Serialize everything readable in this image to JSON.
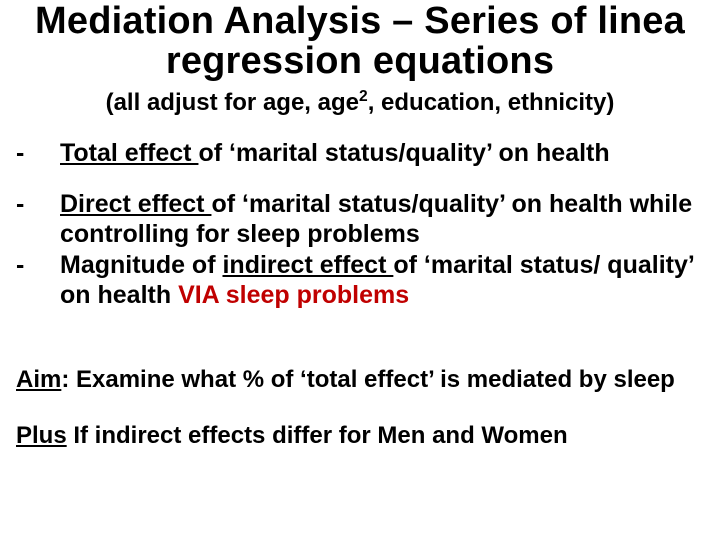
{
  "title_line1": "Mediation Analysis  –  Series of  linea",
  "title_line2": "regression equations",
  "subtitle_pre": "(all adjust for age, age",
  "subtitle_sup": "2",
  "subtitle_post": ", education, ethnicity)",
  "b1_u": "Total effect ",
  "b1_rest": "of ‘marital status/quality’ on health",
  "b2_u": "Direct effect ",
  "b2_rest": "of ‘marital status/quality’ on health while controlling for sleep problems",
  "b3_pre": "Magnitude of ",
  "b3_u": "indirect effect ",
  "b3_mid": "of ‘marital status/ quality’ on health ",
  "b3_red": "VIA sleep problems",
  "aim_u": "Aim",
  "aim_rest": ":   Examine what % of ‘total effect’ is mediated by sleep",
  "plus_u": "Plus",
  "plus_rest": "  If indirect effects differ for Men and Women",
  "dash": "-"
}
